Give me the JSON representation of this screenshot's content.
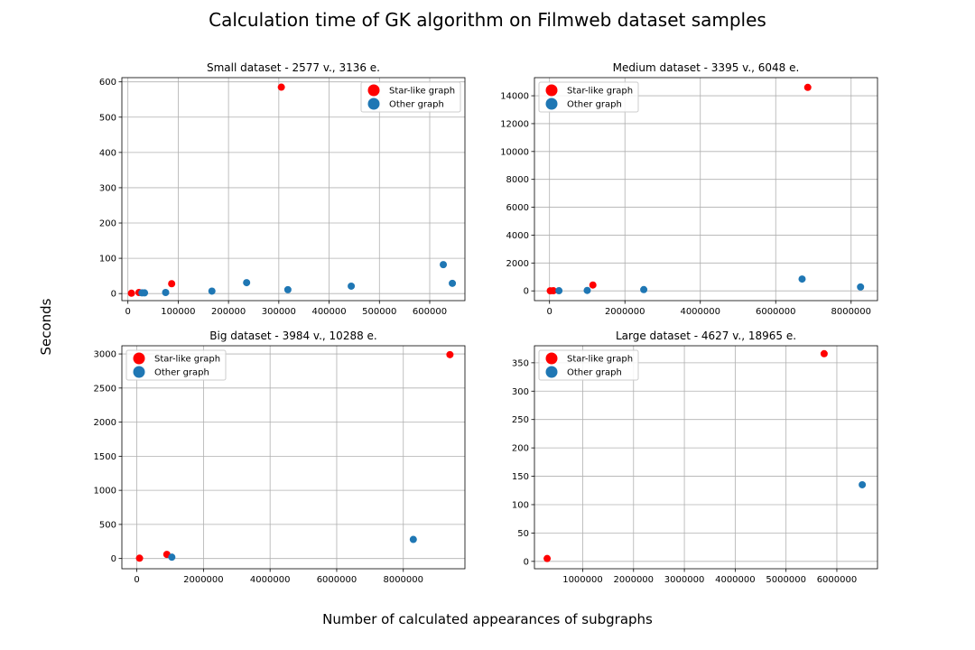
{
  "figure": {
    "title": "Calculation time of GK algorithm on Filmweb dataset samples",
    "ylabel": "Seconds",
    "xlabel": "Number of calculated appearances of subgraphs"
  },
  "colors": {
    "star": "#ff0000",
    "other": "#1f77b4"
  },
  "chart_data": [
    {
      "type": "scatter",
      "title": "Small dataset - 2577 v., 3136 e.",
      "xlim": [
        -12000,
        670000
      ],
      "ylim": [
        -20,
        612
      ],
      "xticks": [
        0,
        100000,
        200000,
        300000,
        400000,
        500000,
        600000
      ],
      "yticks": [
        0,
        100,
        200,
        300,
        400,
        500,
        600
      ],
      "grid": true,
      "legend_position": "top-right",
      "series": [
        {
          "name": "Star-like graph",
          "color": "red",
          "points": [
            [
              7000,
              1
            ],
            [
              22000,
              3
            ],
            [
              87000,
              28
            ],
            [
              305000,
              585
            ]
          ]
        },
        {
          "name": "Other graph",
          "color": "blue",
          "points": [
            [
              28000,
              2
            ],
            [
              33000,
              2
            ],
            [
              75000,
              3
            ],
            [
              167000,
              7
            ],
            [
              236000,
              31
            ],
            [
              318000,
              11
            ],
            [
              444000,
              21
            ],
            [
              627000,
              82
            ],
            [
              645000,
              29
            ]
          ]
        }
      ]
    },
    {
      "type": "scatter",
      "title": "Medium dataset - 3395 v., 6048 e.",
      "xlim": [
        -400000,
        8700000
      ],
      "ylim": [
        -700,
        15300
      ],
      "xticks": [
        0,
        2000000,
        4000000,
        6000000,
        8000000
      ],
      "yticks": [
        0,
        2000,
        4000,
        6000,
        8000,
        10000,
        12000,
        14000
      ],
      "grid": true,
      "legend_position": "top-left",
      "series": [
        {
          "name": "Star-like graph",
          "color": "red",
          "points": [
            [
              20000,
              5
            ],
            [
              100000,
              10
            ],
            [
              1150000,
              420
            ],
            [
              6850000,
              14600
            ]
          ]
        },
        {
          "name": "Other graph",
          "color": "blue",
          "points": [
            [
              250000,
              10
            ],
            [
              1000000,
              30
            ],
            [
              2500000,
              90
            ],
            [
              6700000,
              850
            ],
            [
              8250000,
              280
            ]
          ]
        }
      ]
    },
    {
      "type": "scatter",
      "title": "Big dataset - 3984 v., 10288 e.",
      "xlim": [
        -450000,
        9850000
      ],
      "ylim": [
        -150,
        3120
      ],
      "xticks": [
        0,
        2000000,
        4000000,
        6000000,
        8000000
      ],
      "yticks": [
        0,
        500,
        1000,
        1500,
        2000,
        2500,
        3000
      ],
      "grid": true,
      "legend_position": "top-left",
      "series": [
        {
          "name": "Star-like graph",
          "color": "red",
          "points": [
            [
              80000,
              5
            ],
            [
              900000,
              60
            ],
            [
              9400000,
              2990
            ]
          ]
        },
        {
          "name": "Other graph",
          "color": "blue",
          "points": [
            [
              1050000,
              20
            ],
            [
              8300000,
              280
            ]
          ]
        }
      ]
    },
    {
      "type": "scatter",
      "title": "Large dataset - 4627 v., 18965 e.",
      "xlim": [
        50000,
        6800000
      ],
      "ylim": [
        -13,
        380
      ],
      "xticks": [
        1000000,
        2000000,
        3000000,
        4000000,
        5000000,
        6000000
      ],
      "yticks": [
        0,
        50,
        100,
        150,
        200,
        250,
        300,
        350
      ],
      "grid": true,
      "legend_position": "top-left",
      "series": [
        {
          "name": "Star-like graph",
          "color": "red",
          "points": [
            [
              300000,
              5
            ],
            [
              5750000,
              366
            ]
          ]
        },
        {
          "name": "Other graph",
          "color": "blue",
          "points": [
            [
              6500000,
              135
            ]
          ]
        }
      ]
    }
  ]
}
